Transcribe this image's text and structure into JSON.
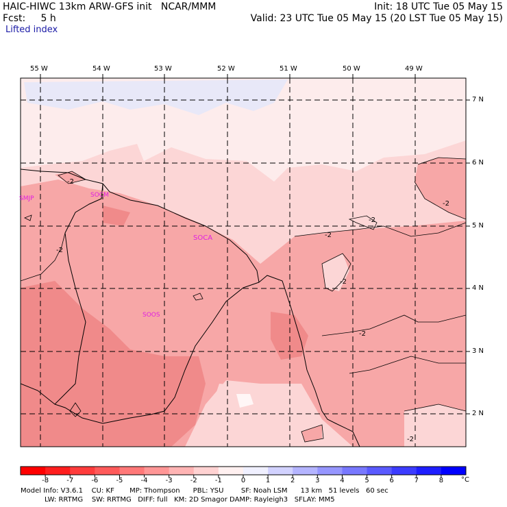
{
  "header": {
    "model_title": "HAIC-HIWC 13km ARW-GFS init   NCAR/MMM",
    "init": "Init: 18 UTC Tue 05 May 15",
    "fcst": "Fcst:     5 h",
    "valid": "Valid: 23 UTC Tue 05 May 15 (20 LST Tue 05 May 15)",
    "field": "Lifted index"
  },
  "map": {
    "lon_labels": [
      "55 W",
      "54 W",
      "53 W",
      "52 W",
      "51 W",
      "50 W",
      "49 W"
    ],
    "lat_labels": [
      "7 N",
      "6 N",
      "5 N",
      "4 N",
      "3 N",
      "2 N"
    ],
    "stations": [
      "SMJP",
      "SOCM",
      "SOCA",
      "SOOS"
    ],
    "contour_labels": [
      "-2",
      "-2",
      "-2",
      "-2",
      "-2",
      "-2",
      "-2",
      "-2"
    ],
    "colors": {
      "li_neg1": "#fcd6d6",
      "li_neg2": "#f7a7a7",
      "li_neg3": "#f08a8a",
      "li_pos1": "#e8e8f8",
      "li_zero": "#fdf0f0"
    }
  },
  "colorbar": {
    "labels": [
      "-8",
      "-7",
      "-6",
      "-5",
      "-4",
      "-3",
      "-2",
      "-1",
      "0",
      "1",
      "2",
      "3",
      "4",
      "5",
      "6",
      "7",
      "8"
    ],
    "unit": "°C",
    "colors": [
      "#ff0000",
      "#ff1e1e",
      "#ff3c3c",
      "#ff5a5a",
      "#ff7878",
      "#ff9696",
      "#ffb4b4",
      "#ffd2d2",
      "#fff0f0",
      "#f0f0ff",
      "#d2d2ff",
      "#b4b4ff",
      "#9696ff",
      "#7878ff",
      "#5a5aff",
      "#3c3cff",
      "#1e1eff",
      "#0000ff"
    ]
  },
  "footer": {
    "line1": "Model Info: V3.6.1    CU: KF       MP: Thompson      PBL: YSU        SF: Noah LSM      13 km   51 levels   60 sec",
    "line2": "           LW: RRTMG    SW: RRTMG   DIFF: full   KM: 2D Smagor DAMP: Rayleigh3   SFLAY: MM5"
  }
}
